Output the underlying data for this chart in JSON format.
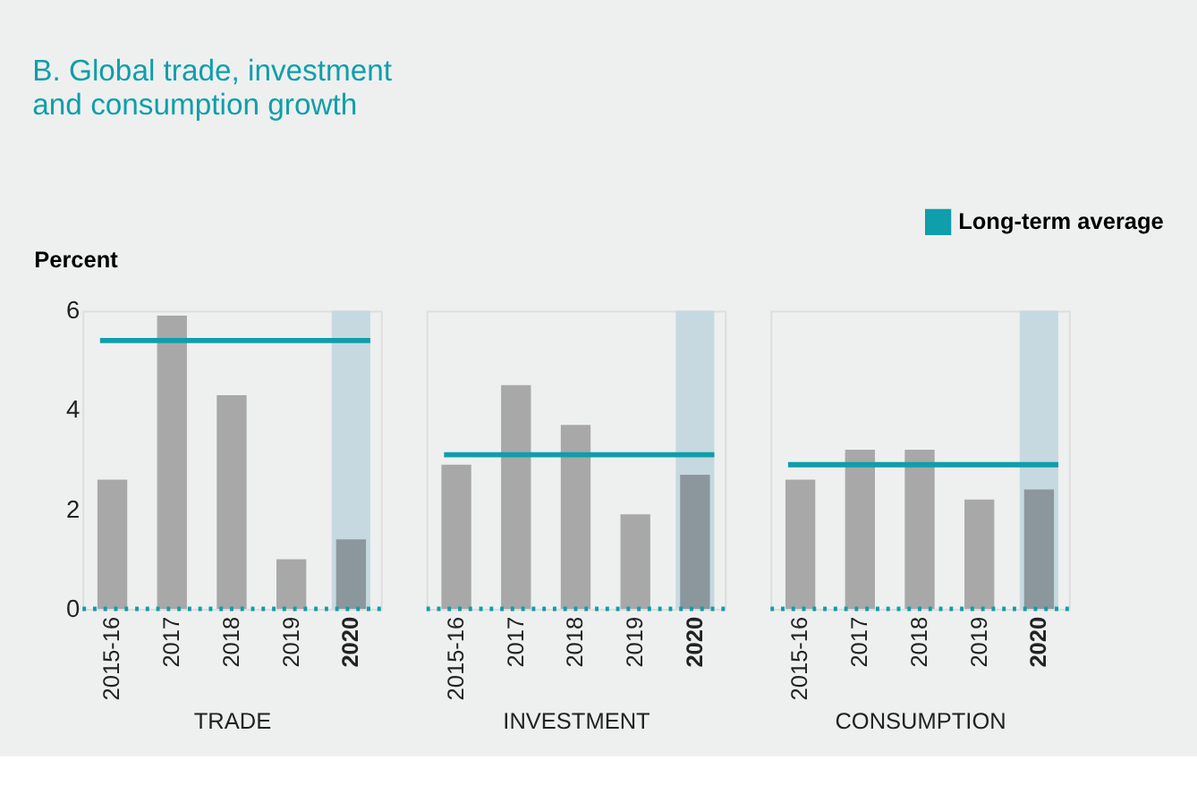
{
  "chart_data": [
    {
      "type": "bar",
      "title": "B. Global trade, investment and consumption growth",
      "ylabel": "Percent",
      "xlabel": "TRADE",
      "categories": [
        "2015-16",
        "2017",
        "2018",
        "2019",
        "2020"
      ],
      "values": [
        2.6,
        5.9,
        4.3,
        1.0,
        1.4
      ],
      "colors": [
        "#a8a8a8",
        "#a8a8a8",
        "#a8a8a8",
        "#a8a8a8",
        "#8c979d"
      ],
      "ylim": [
        0,
        6
      ],
      "yticks": [
        0,
        2,
        4,
        6
      ],
      "grid": false,
      "legend": "top right",
      "ref_lines": [
        {
          "axis": "y",
          "value": 5.4,
          "label": "Long-term average",
          "color": "#0f9eab"
        }
      ],
      "bands": [
        {
          "axis": "x",
          "from": "2020",
          "to": "2020",
          "color": "#c6d9e0"
        }
      ]
    },
    {
      "type": "bar",
      "xlabel": "INVESTMENT",
      "categories": [
        "2015-16",
        "2017",
        "2018",
        "2019",
        "2020"
      ],
      "values": [
        2.9,
        4.5,
        3.7,
        1.9,
        2.7
      ],
      "colors": [
        "#a8a8a8",
        "#a8a8a8",
        "#a8a8a8",
        "#a8a8a8",
        "#8c979d"
      ],
      "ylim": [
        0,
        6
      ],
      "yticks": [
        0,
        2,
        4,
        6
      ],
      "grid": false,
      "tick_labels": "x",
      "ref_lines": [
        {
          "axis": "y",
          "value": 3.1,
          "color": "#0f9eab"
        }
      ],
      "bands": [
        {
          "axis": "x",
          "from": "2020",
          "to": "2020",
          "color": "#c6d9e0"
        }
      ]
    },
    {
      "type": "bar",
      "xlabel": "CONSUMPTION",
      "categories": [
        "2015-16",
        "2017",
        "2018",
        "2019",
        "2020"
      ],
      "values": [
        2.6,
        3.2,
        3.2,
        2.2,
        2.4
      ],
      "colors": [
        "#a8a8a8",
        "#a8a8a8",
        "#a8a8a8",
        "#a8a8a8",
        "#8c979d"
      ],
      "ylim": [
        0,
        6
      ],
      "yticks": [
        0,
        2,
        4,
        6
      ],
      "grid": false,
      "tick_labels": "x",
      "ref_lines": [
        {
          "axis": "y",
          "value": 2.9,
          "color": "#0f9eab"
        }
      ],
      "bands": [
        {
          "axis": "x",
          "from": "2020",
          "to": "2020",
          "color": "#c6d9e0"
        }
      ]
    }
  ]
}
